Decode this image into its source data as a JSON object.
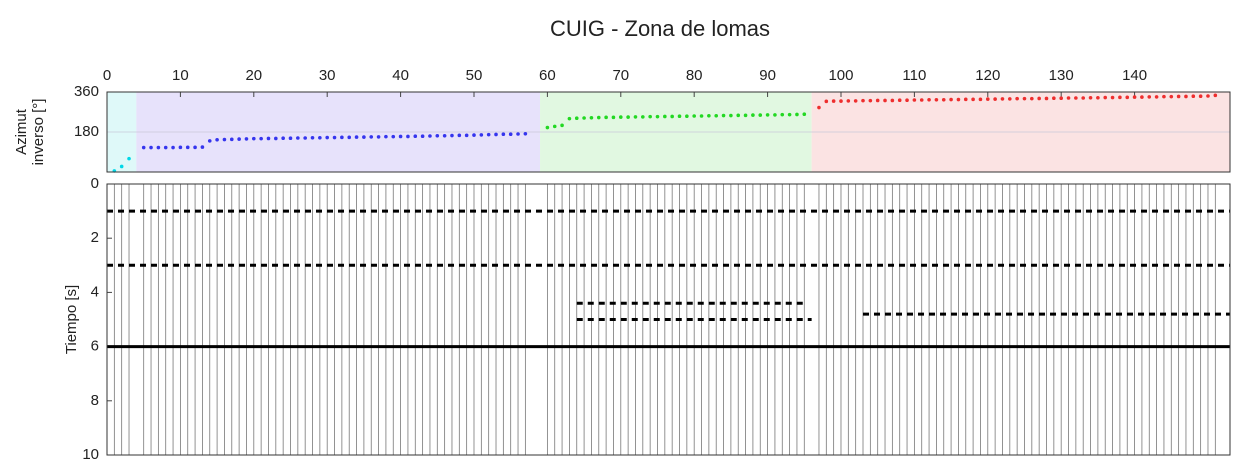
{
  "chart_data": [
    {
      "type": "scatter",
      "title": "CUIG - Zona de lomas",
      "ylabel": [
        "Azimut",
        "inverso [°]"
      ],
      "xlim": [
        0,
        153
      ],
      "xticks": [
        0,
        10,
        20,
        30,
        40,
        50,
        60,
        70,
        80,
        90,
        100,
        110,
        120,
        130,
        140
      ],
      "ylim": [
        0,
        360
      ],
      "yticks": [
        180,
        360
      ],
      "grid": true,
      "regions": [
        {
          "xlim": [
            0,
            4
          ],
          "color": "#dff9f9"
        },
        {
          "xlim": [
            4,
            59
          ],
          "color": "#e7e2fb"
        },
        {
          "xlim": [
            59,
            96
          ],
          "color": "#e1f8e1"
        },
        {
          "xlim": [
            96,
            153
          ],
          "color": "#fbe3e3"
        }
      ],
      "series": [
        {
          "color": "#00d8e8",
          "x": [
            1,
            2,
            3
          ],
          "values": [
            5,
            25,
            60
          ]
        },
        {
          "color": "#3535ee",
          "x": [
            5,
            6,
            7,
            8,
            9,
            10,
            11,
            12,
            13,
            14,
            15,
            16,
            17,
            18,
            19,
            20,
            21,
            22,
            23,
            24,
            25,
            26,
            27,
            28,
            29,
            30,
            31,
            32,
            33,
            34,
            35,
            36,
            37,
            38,
            39,
            40,
            41,
            42,
            43,
            44,
            45,
            46,
            47,
            48,
            49,
            50,
            51,
            52,
            53,
            54,
            55,
            56,
            57
          ],
          "values": [
            110,
            110,
            110,
            110,
            110,
            111,
            111,
            111,
            112,
            140,
            145,
            146,
            147,
            148,
            149,
            150,
            150,
            151,
            151,
            152,
            152,
            153,
            153,
            154,
            154,
            155,
            155,
            156,
            156,
            157,
            157,
            158,
            158,
            159,
            159,
            160,
            160,
            161,
            161,
            162,
            163,
            163,
            164,
            165,
            165,
            166,
            167,
            168,
            169,
            170,
            170,
            171,
            172
          ]
        },
        {
          "color": "#22d822",
          "x": [
            60,
            61,
            62,
            63,
            64,
            65,
            66,
            67,
            68,
            69,
            70,
            71,
            72,
            73,
            74,
            75,
            76,
            77,
            78,
            79,
            80,
            81,
            82,
            83,
            84,
            85,
            86,
            87,
            88,
            89,
            90,
            91,
            92,
            93,
            94,
            95
          ],
          "values": [
            200,
            205,
            210,
            240,
            242,
            243,
            244,
            245,
            246,
            246,
            247,
            247,
            248,
            248,
            249,
            249,
            250,
            250,
            251,
            251,
            252,
            252,
            253,
            253,
            254,
            254,
            255,
            255,
            256,
            256,
            257,
            257,
            258,
            258,
            259,
            260
          ]
        },
        {
          "color": "#ee2e2e",
          "x": [
            97,
            98,
            99,
            100,
            101,
            102,
            103,
            104,
            105,
            106,
            107,
            108,
            109,
            110,
            111,
            112,
            113,
            114,
            115,
            116,
            117,
            118,
            119,
            120,
            121,
            122,
            123,
            124,
            125,
            126,
            127,
            128,
            129,
            130,
            131,
            132,
            133,
            134,
            135,
            136,
            137,
            138,
            139,
            140,
            141,
            142,
            143,
            144,
            145,
            146,
            147,
            148,
            149,
            150,
            151
          ],
          "values": [
            290,
            318,
            319,
            319,
            320,
            320,
            321,
            321,
            322,
            322,
            322,
            323,
            323,
            324,
            324,
            325,
            325,
            325,
            326,
            326,
            327,
            327,
            327,
            328,
            328,
            329,
            329,
            330,
            330,
            330,
            331,
            331,
            332,
            332,
            333,
            333,
            333,
            334,
            334,
            335,
            335,
            336,
            336,
            337,
            337,
            338,
            338,
            339,
            339,
            340,
            340,
            341,
            341,
            342,
            345
          ]
        }
      ]
    },
    {
      "type": "lines",
      "ylabel": "Tiempo [s]",
      "xlim": [
        0,
        153
      ],
      "ylim": [
        0,
        10
      ],
      "yticks": [
        0,
        2,
        4,
        6,
        8,
        10
      ],
      "inverted": true,
      "lines": [
        {
          "y": 1,
          "x": [
            0,
            153
          ],
          "style": "dashed"
        },
        {
          "y": 3,
          "x": [
            0,
            153
          ],
          "style": "dashed"
        },
        {
          "y": 4.4,
          "x": [
            64,
            95
          ],
          "style": "dashed"
        },
        {
          "y": 5,
          "x": [
            64,
            96
          ],
          "style": "dashed"
        },
        {
          "y": 4.8,
          "x": [
            103,
            153
          ],
          "style": "dashed"
        },
        {
          "y": 6,
          "x": [
            0,
            153
          ],
          "style": "solid"
        }
      ]
    }
  ]
}
